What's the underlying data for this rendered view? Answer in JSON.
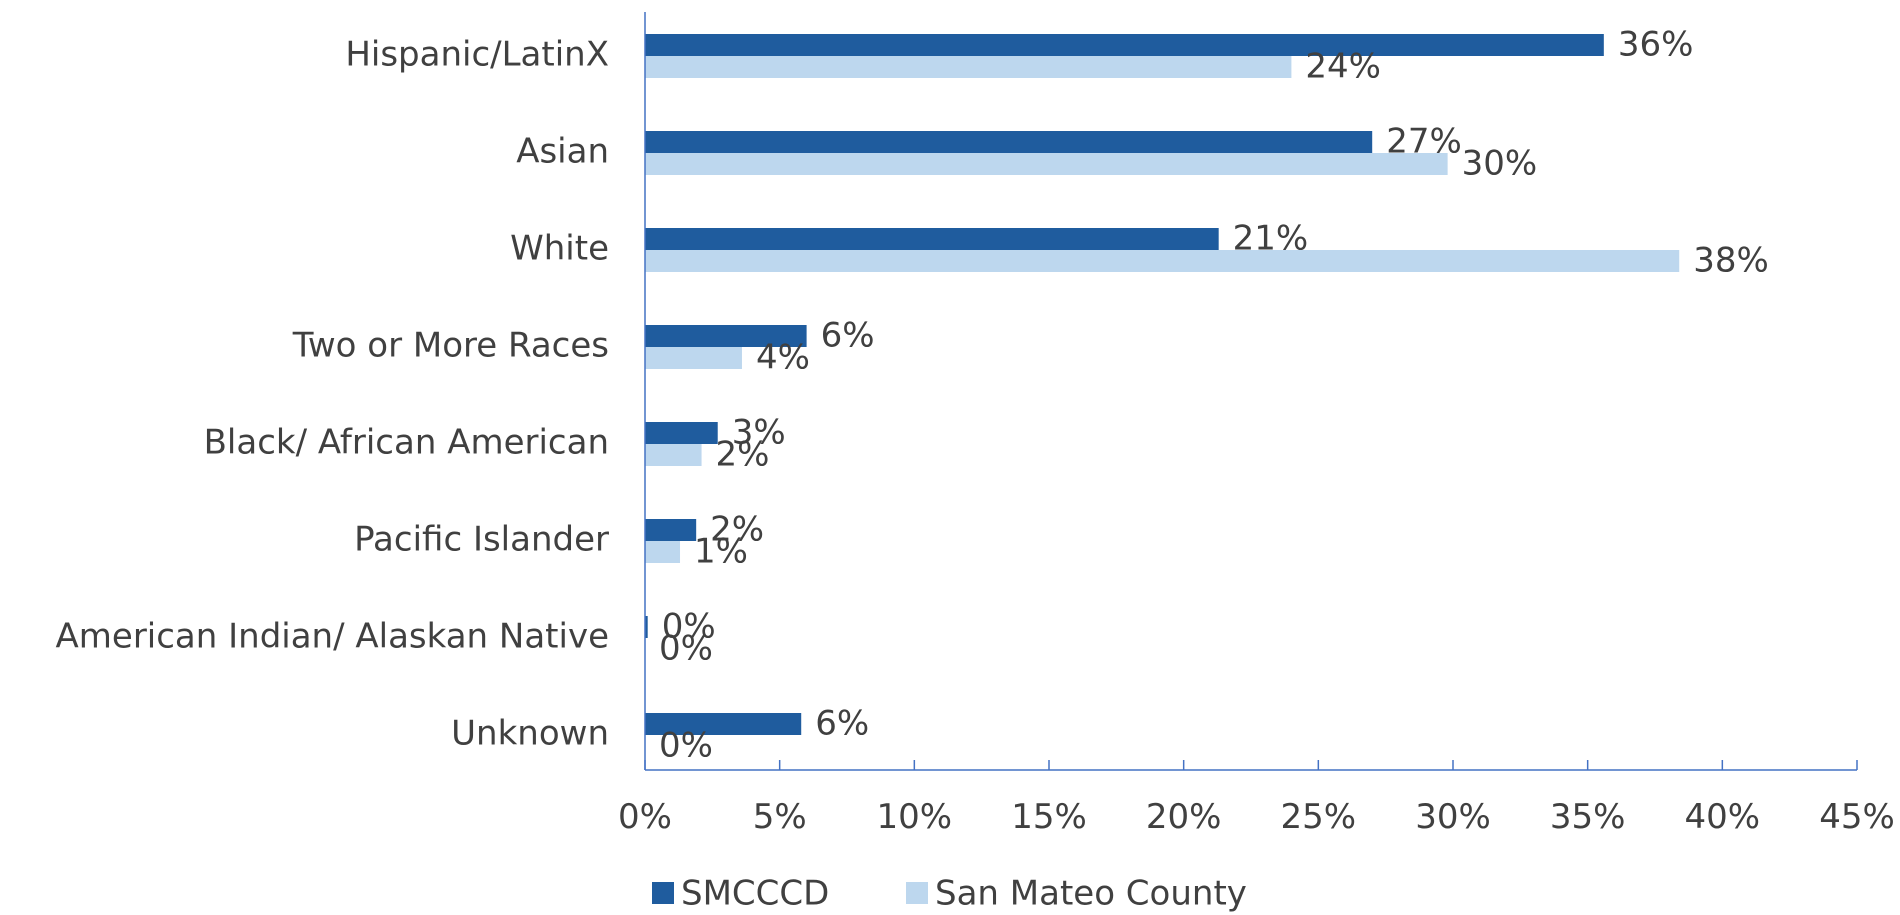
{
  "chart_data": {
    "type": "bar",
    "orientation": "horizontal",
    "categories": [
      "Hispanic/LatinX",
      "Asian",
      "White",
      "Two or More Races",
      "Black/ African American",
      "Pacific Islander",
      "American Indian/ Alaskan Native",
      "Unknown"
    ],
    "series": [
      {
        "name": "SMCCCD",
        "color": "#1f5c9e",
        "values": [
          35.6,
          27.0,
          21.3,
          6.0,
          2.7,
          1.9,
          0.1,
          5.8
        ],
        "labels": [
          "36%",
          "27%",
          "21%",
          "6%",
          "3%",
          "2%",
          "0%",
          "6%"
        ]
      },
      {
        "name": "San Mateo County",
        "color": "#bdd7ee",
        "values": [
          24.0,
          29.8,
          38.4,
          3.6,
          2.1,
          1.3,
          0.0,
          0.0
        ],
        "labels": [
          "24%",
          "30%",
          "38%",
          "4%",
          "2%",
          "1%",
          "0%",
          "0%"
        ]
      }
    ],
    "xlim": [
      0,
      45
    ],
    "xticks": [
      "0%",
      "5%",
      "10%",
      "15%",
      "20%",
      "25%",
      "30%",
      "35%",
      "40%",
      "45%"
    ],
    "xlabel": "",
    "ylabel": "",
    "title": "",
    "grid": false,
    "legend_position": "bottom"
  }
}
